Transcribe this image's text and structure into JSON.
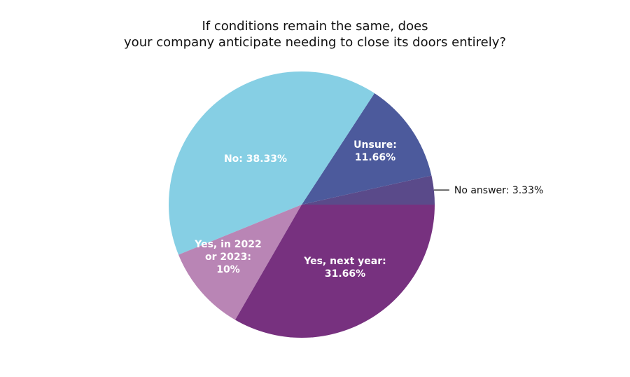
{
  "chart_data": {
    "type": "pie",
    "title_lines": [
      "If conditions remain the same, does",
      "your company anticipate needing to close its doors entirely?"
    ],
    "start_angle_deg": 0,
    "direction": "counterclockwise",
    "slices": [
      {
        "name": "No answer",
        "value": 3.33,
        "label_lines": [
          "No answer: 3.33%"
        ],
        "color": "#5a4a8a",
        "label_outside": true
      },
      {
        "name": "Unsure",
        "value": 11.66,
        "label_lines": [
          "Unsure:",
          "11.66%"
        ],
        "color": "#4c5a9c",
        "label_outside": false
      },
      {
        "name": "No",
        "value": 38.33,
        "label_lines": [
          "No: 38.33%"
        ],
        "color": "#86cfe4",
        "label_outside": false
      },
      {
        "name": "Yes, in 2022 or 2023",
        "value": 10,
        "label_lines": [
          "Yes, in 2022",
          "or 2023:",
          "10%"
        ],
        "color": "#b985b5",
        "label_outside": false
      },
      {
        "name": "Yes, next year",
        "value": 31.66,
        "label_lines": [
          "Yes, next year:",
          "31.66%"
        ],
        "color": "#77317f",
        "label_outside": false
      }
    ]
  }
}
